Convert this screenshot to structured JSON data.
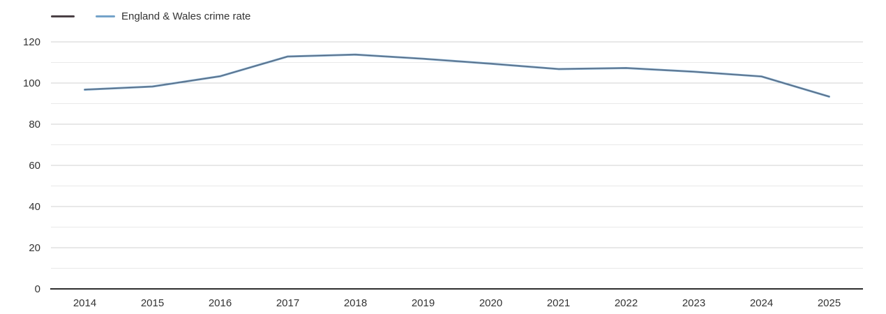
{
  "legend": {
    "items": [
      {
        "label": "",
        "color": "#4a4045"
      },
      {
        "label": "England & Wales crime rate",
        "color": "#74a3c9"
      }
    ]
  },
  "chart_data": {
    "type": "line",
    "title": "",
    "xlabel": "",
    "ylabel": "",
    "categories": [
      "2014",
      "2015",
      "2016",
      "2017",
      "2018",
      "2019",
      "2020",
      "2021",
      "2022",
      "2023",
      "2024",
      "2025"
    ],
    "series": [
      {
        "name": "",
        "color": "#4a4045",
        "values": [
          96.8,
          98.3,
          103.3,
          112.9,
          113.8,
          111.8,
          109.4,
          106.8,
          107.3,
          105.5,
          103.2,
          93.4
        ]
      },
      {
        "name": "England & Wales crime rate",
        "color": "#74a3c9",
        "values": [
          96.8,
          98.3,
          103.3,
          112.9,
          113.8,
          111.8,
          109.4,
          106.8,
          107.3,
          105.5,
          103.2,
          93.4
        ]
      }
    ],
    "ylim": [
      0,
      120
    ],
    "yticks": [
      0,
      20,
      40,
      60,
      80,
      100,
      120
    ],
    "minor_grid_step": 10,
    "grid": true,
    "legend_position": "top-left"
  },
  "colors": {
    "background": "#ffffff",
    "major_gridline": "#d0d0d0",
    "minor_gridline": "#e9e9e9",
    "axis_line": "#2f2f2f",
    "label_text": "#333333"
  }
}
